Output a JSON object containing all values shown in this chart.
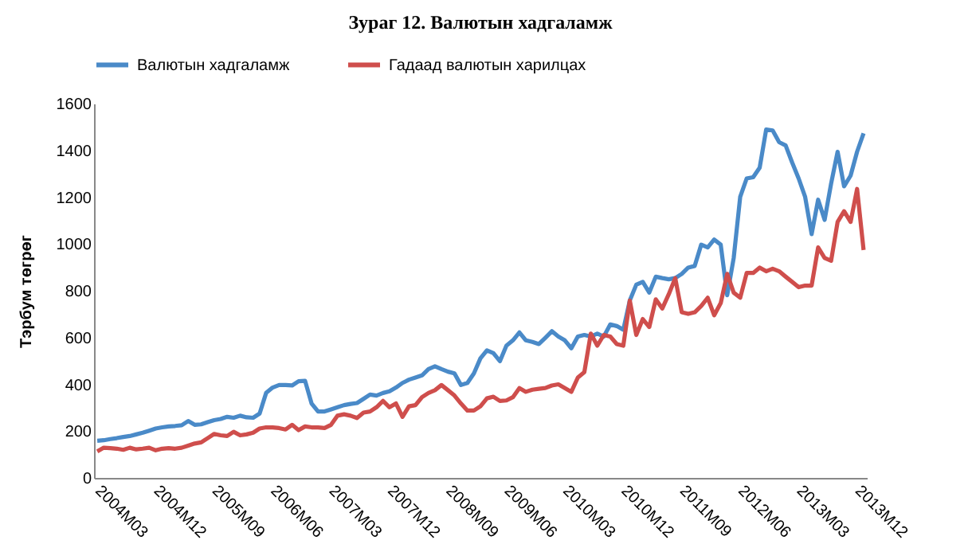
{
  "chart_data": {
    "type": "line",
    "title": "Зураг 12.  Валютын хадгаламж",
    "ylabel": "Тэрбум төгрөг",
    "categories": [
      "2004M03",
      null,
      null,
      null,
      null,
      null,
      null,
      null,
      null,
      "2004M12",
      null,
      null,
      null,
      null,
      null,
      null,
      null,
      null,
      "2005M09",
      null,
      null,
      null,
      null,
      null,
      null,
      null,
      null,
      "2006M06",
      null,
      null,
      null,
      null,
      null,
      null,
      null,
      null,
      "2007M03",
      null,
      null,
      null,
      null,
      null,
      null,
      null,
      null,
      "2007M12",
      null,
      null,
      null,
      null,
      null,
      null,
      null,
      null,
      "2008M09",
      null,
      null,
      null,
      null,
      null,
      null,
      null,
      null,
      "2009M06",
      null,
      null,
      null,
      null,
      null,
      null,
      null,
      null,
      "2010M03",
      null,
      null,
      null,
      null,
      null,
      null,
      null,
      null,
      "2010M12",
      null,
      null,
      null,
      null,
      null,
      null,
      null,
      null,
      "2011M09",
      null,
      null,
      null,
      null,
      null,
      null,
      null,
      null,
      "2012M06",
      null,
      null,
      null,
      null,
      null,
      null,
      null,
      null,
      "2013M03",
      null,
      null,
      null,
      null,
      null,
      null,
      null,
      null,
      "2013M12",
      null
    ],
    "series": [
      {
        "name": "Валютын хадгаламж",
        "color": "#4a8ac8",
        "values": [
          159,
          161,
          166,
          170,
          175,
          179,
          186,
          193,
          202,
          211,
          216,
          220,
          222,
          225,
          243,
          227,
          229,
          238,
          247,
          252,
          261,
          257,
          266,
          259,
          257,
          275,
          363,
          386,
          397,
          397,
          395,
          413,
          415,
          318,
          284,
          284,
          293,
          302,
          311,
          316,
          320,
          338,
          356,
          352,
          363,
          370,
          386,
          406,
          420,
          429,
          438,
          465,
          477,
          465,
          454,
          447,
          397,
          406,
          447,
          511,
          545,
          533,
          499,
          565,
          588,
          622,
          588,
          581,
          572,
          599,
          627,
          604,
          588,
          554,
          604,
          611,
          604,
          617,
          604,
          656,
          649,
          633,
          758,
          826,
          838,
          792,
          860,
          854,
          849,
          854,
          872,
          899,
          906,
          997,
          985,
          1019,
          997,
          781,
          940,
          1201,
          1280,
          1285,
          1326,
          1489,
          1485,
          1435,
          1421,
          1348,
          1280,
          1201,
          1042,
          1189,
          1103,
          1258,
          1394,
          1246,
          1292,
          1394,
          1473
        ]
      },
      {
        "name": "Гадаад валютын харилцах",
        "color": "#cf4e4c",
        "values": [
          113,
          129,
          127,
          125,
          120,
          129,
          122,
          125,
          129,
          118,
          125,
          127,
          125,
          129,
          138,
          147,
          152,
          170,
          188,
          182,
          179,
          197,
          182,
          186,
          193,
          211,
          216,
          216,
          213,
          207,
          227,
          204,
          220,
          216,
          216,
          213,
          227,
          266,
          272,
          266,
          256,
          279,
          284,
          302,
          329,
          302,
          318,
          261,
          306,
          311,
          345,
          363,
          375,
          397,
          375,
          352,
          318,
          288,
          288,
          306,
          340,
          347,
          329,
          331,
          345,
          384,
          368,
          377,
          381,
          384,
          395,
          400,
          384,
          368,
          429,
          452,
          617,
          565,
          611,
          604,
          572,
          565,
          758,
          611,
          679,
          645,
          763,
          724,
          785,
          854,
          708,
          701,
          708,
          735,
          770,
          695,
          747,
          872,
          792,
          770,
          876,
          876,
          899,
          883,
          894,
          883,
          860,
          838,
          815,
          822,
          822,
          985,
          940,
          928,
          1094,
          1140,
          1094,
          1235,
          974
        ]
      }
    ],
    "ylim": [
      0,
      1600
    ],
    "yticks": [
      0,
      200,
      400,
      600,
      800,
      1000,
      1200,
      1400,
      1600
    ],
    "grid": false,
    "legend": "top",
    "marker": "none",
    "line_style": "solid"
  }
}
